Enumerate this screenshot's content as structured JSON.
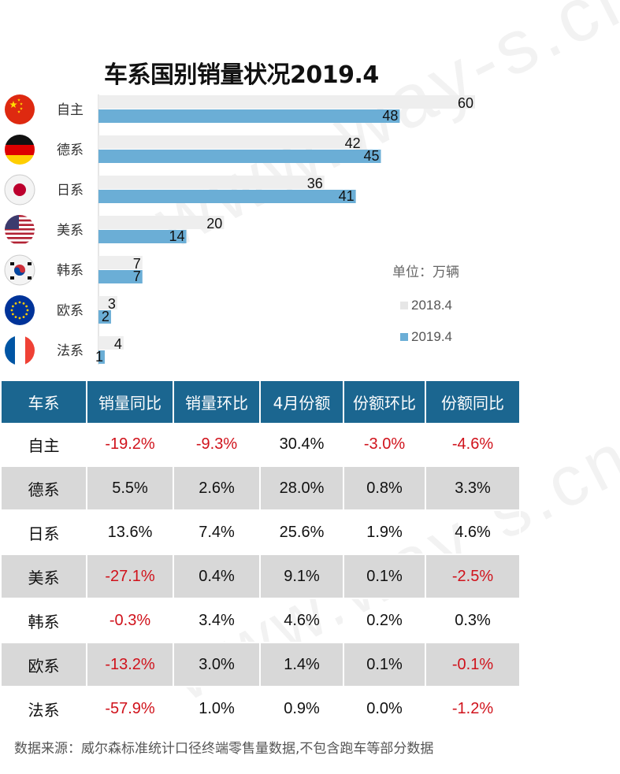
{
  "title": "车系国别销量状况2019.4",
  "unit_label": "单位：万辆",
  "watermark": "www.way-s.cn",
  "chart_data": {
    "type": "bar",
    "orientation": "horizontal",
    "categories": [
      "自主",
      "德系",
      "日系",
      "美系",
      "韩系",
      "欧系",
      "法系"
    ],
    "series": [
      {
        "name": "2018.4",
        "color": "#eeeeee",
        "values": [
          60,
          42,
          36,
          20,
          7,
          3,
          4
        ]
      },
      {
        "name": "2019.4",
        "color": "#6baed6",
        "values": [
          48,
          45,
          41,
          14,
          7,
          2,
          1
        ]
      }
    ],
    "xlim": [
      0,
      60
    ],
    "legend": "right",
    "grid": false,
    "flags": [
      "china-flag-icon",
      "germany-flag-icon",
      "japan-flag-icon",
      "usa-flag-icon",
      "korea-flag-icon",
      "eu-flag-icon",
      "france-flag-icon"
    ]
  },
  "table": {
    "headers": [
      "车系",
      "销量同比",
      "销量环比",
      "4月份额",
      "份额环比",
      "份额同比"
    ],
    "rows": [
      [
        "自主",
        "-19.2%",
        "-9.3%",
        "30.4%",
        "-3.0%",
        "-4.6%"
      ],
      [
        "德系",
        "5.5%",
        "2.6%",
        "28.0%",
        "0.8%",
        "3.3%"
      ],
      [
        "日系",
        "13.6%",
        "7.4%",
        "25.6%",
        "1.9%",
        "4.6%"
      ],
      [
        "美系",
        "-27.1%",
        "0.4%",
        "9.1%",
        "0.1%",
        "-2.5%"
      ],
      [
        "韩系",
        "-0.3%",
        "3.4%",
        "4.6%",
        "0.2%",
        "0.3%"
      ],
      [
        "欧系",
        "-13.2%",
        "3.0%",
        "1.4%",
        "0.1%",
        "-0.1%"
      ],
      [
        "法系",
        "-57.9%",
        "1.0%",
        "0.9%",
        "0.0%",
        "-1.2%"
      ]
    ]
  },
  "colors": {
    "header_bg": "#1b6690",
    "negative": "#d0121b",
    "row_alt": "#d8d8d8"
  },
  "source": "数据来源：威尔森标准统计口径终端零售量数据,不包含跑车等部分数据"
}
